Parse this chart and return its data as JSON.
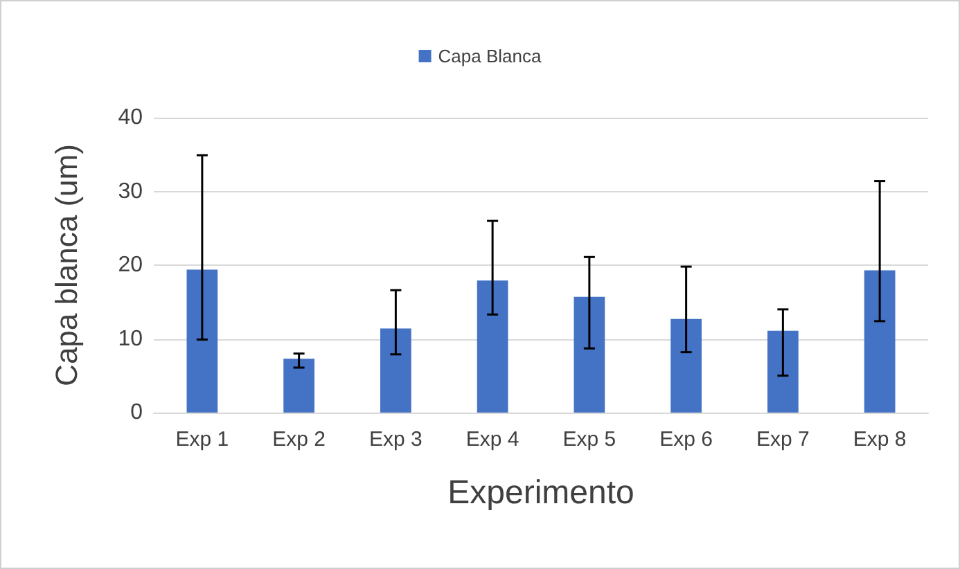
{
  "chart_data": {
    "type": "bar",
    "xlabel": "Experimento",
    "ylabel": "Capa blanca (um)",
    "categories": [
      "Exp 1",
      "Exp 2",
      "Exp 3",
      "Exp 4",
      "Exp 5",
      "Exp 6",
      "Exp 7",
      "Exp 8"
    ],
    "series": [
      {
        "name": "Capa Blanca",
        "color": "#4472c4",
        "values": [
          19.4,
          7.3,
          11.4,
          17.9,
          15.7,
          12.7,
          11.1,
          19.3
        ],
        "errors": [
          [
            9.9,
            34.9
          ],
          [
            6.1,
            8.0
          ],
          [
            7.9,
            16.6
          ],
          [
            13.3,
            26.0
          ],
          [
            8.7,
            21.1
          ],
          [
            8.2,
            19.8
          ],
          [
            5.0,
            14.0
          ],
          [
            12.4,
            31.4
          ]
        ]
      }
    ],
    "ylim": [
      0,
      40
    ],
    "yticks": [
      0,
      10,
      20,
      30,
      40
    ],
    "grid": "y",
    "legend": "top"
  }
}
